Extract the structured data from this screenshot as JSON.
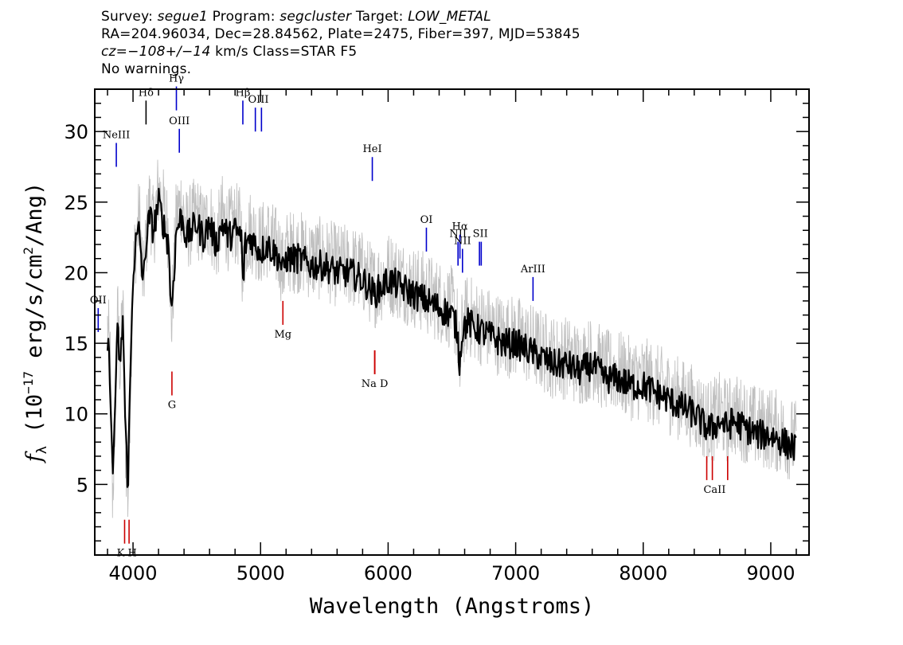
{
  "header": {
    "survey_label": "Survey:",
    "survey": "segue1",
    "program_label": "Program:",
    "program": "segcluster",
    "target_label": "Target:",
    "target": "LOW_METAL",
    "line2": "RA=204.96034, Dec=28.84562, Plate=2475, Fiber=397, MJD=53845",
    "cz_prefix": "cz=",
    "cz_value": "−108+/−14",
    "cz_suffix": " km/s Class=STAR F5",
    "line4": "No warnings."
  },
  "chart_data": {
    "type": "line",
    "xlabel": "Wavelength (Angstroms)",
    "ylabel_symbol": "f",
    "ylabel_sub": "λ",
    "ylabel_pre": " (10",
    "ylabel_exp": "−17",
    "ylabel_mid": " erg/s/cm",
    "ylabel_exp2": "2",
    "ylabel_post": "/Ang)",
    "xlim": [
      3700,
      9300
    ],
    "ylim": [
      0,
      33
    ],
    "xticks": [
      4000,
      5000,
      6000,
      7000,
      8000,
      9000
    ],
    "yticks": [
      5,
      10,
      15,
      20,
      25,
      30
    ],
    "series": [
      {
        "role": "flux",
        "color": "#c0c0c0",
        "x": [
          3800,
          3820,
          3840,
          3860,
          3880,
          3900,
          3920,
          3940,
          3960,
          3980,
          4000,
          4020,
          4050,
          4080,
          4100,
          4130,
          4160,
          4200,
          4250,
          4280,
          4300,
          4340,
          4380,
          4420,
          4460,
          4500,
          4550,
          4600,
          4650,
          4700,
          4750,
          4800,
          4850,
          4861,
          4880,
          4920,
          4960,
          5000,
          5050,
          5100,
          5150,
          5175,
          5200,
          5300,
          5400,
          5500,
          5600,
          5700,
          5800,
          5890,
          5950,
          6000,
          6100,
          6200,
          6300,
          6400,
          6500,
          6540,
          6563,
          6580,
          6620,
          6700,
          6800,
          6900,
          7000,
          7100,
          7200,
          7300,
          7400,
          7500,
          7600,
          7700,
          7800,
          7900,
          8000,
          8100,
          8200,
          8300,
          8400,
          8498,
          8542,
          8600,
          8662,
          8700,
          8800,
          8900,
          9000,
          9100,
          9200
        ],
        "y": [
          16,
          14,
          4,
          10,
          17,
          13,
          18,
          8,
          4,
          12,
          20,
          22,
          24,
          19,
          22,
          25,
          23,
          26,
          24,
          23,
          16,
          24,
          25,
          23,
          23.5,
          24,
          23,
          24,
          22,
          24,
          23,
          23.5,
          23,
          19,
          22.5,
          23,
          22.5,
          22,
          22.5,
          22,
          21.5,
          20,
          21.5,
          21.5,
          21,
          21,
          20.5,
          20.5,
          20,
          19,
          19.5,
          20,
          19.5,
          19,
          18.5,
          18,
          17.5,
          16.5,
          13,
          16,
          17,
          16.5,
          16,
          15.5,
          15.5,
          15,
          14.5,
          14,
          14,
          13.5,
          14,
          13,
          13,
          12.5,
          12.5,
          12,
          11.5,
          11,
          10.5,
          9.5,
          9.5,
          10,
          9.5,
          10,
          9.5,
          9,
          9,
          8.5,
          8
        ]
      },
      {
        "role": "model",
        "color": "#000000",
        "x": [
          3800,
          3820,
          3840,
          3860,
          3880,
          3900,
          3920,
          3940,
          3960,
          3980,
          4000,
          4020,
          4050,
          4080,
          4100,
          4130,
          4160,
          4200,
          4250,
          4280,
          4300,
          4340,
          4380,
          4420,
          4460,
          4500,
          4550,
          4600,
          4650,
          4700,
          4750,
          4800,
          4850,
          4861,
          4880,
          4920,
          4960,
          5000,
          5050,
          5100,
          5150,
          5175,
          5200,
          5300,
          5400,
          5500,
          5600,
          5700,
          5800,
          5890,
          5950,
          6000,
          6100,
          6200,
          6300,
          6400,
          6500,
          6540,
          6563,
          6580,
          6620,
          6700,
          6800,
          6900,
          7000,
          7100,
          7200,
          7300,
          7400,
          7500,
          7600,
          7700,
          7800,
          7900,
          8000,
          8100,
          8200,
          8300,
          8400,
          8498,
          8542,
          8600,
          8662,
          8700,
          8800,
          8900,
          9000,
          9100,
          9200
        ],
        "y": [
          15,
          13,
          5,
          11,
          16,
          13,
          17,
          9,
          5,
          13,
          20,
          22,
          23,
          19,
          22,
          24,
          23,
          25,
          23,
          22,
          17,
          23,
          24,
          22.5,
          23,
          23.5,
          22.5,
          23.5,
          22,
          23.5,
          22.5,
          23,
          22.5,
          19,
          22,
          22.5,
          22,
          21.5,
          22,
          21.5,
          21,
          20,
          21,
          21,
          20.5,
          20.5,
          20,
          20,
          19.5,
          18.5,
          19,
          19.5,
          19,
          18.5,
          18,
          17.5,
          17,
          16,
          13.5,
          16,
          16.5,
          16,
          15.5,
          15,
          15,
          14.5,
          14,
          13.5,
          13.5,
          13,
          13.5,
          12.5,
          12.5,
          12,
          12,
          11.5,
          11,
          10.5,
          10,
          9,
          9,
          9.5,
          9,
          9.5,
          9,
          8.5,
          8.5,
          8,
          7.5
        ]
      }
    ],
    "emission_lines": [
      {
        "label": "OII",
        "x": 3727,
        "y": 15.8,
        "color": "#0000cc"
      },
      {
        "label": "NeIII",
        "x": 3869,
        "y": 27.5,
        "color": "#0000cc"
      },
      {
        "label": "Hδ",
        "x": 4102,
        "y": 30.5,
        "color": "#000000"
      },
      {
        "label": "Hγ",
        "x": 4340,
        "y": 31.5,
        "color": "#0000cc"
      },
      {
        "label": "OIII",
        "x": 4363,
        "y": 28.5,
        "color": "#0000cc"
      },
      {
        "label": "Hβ",
        "x": 4861,
        "y": 30.5,
        "color": "#0000cc"
      },
      {
        "label": "OIII",
        "x": 4959,
        "y": 30.0,
        "color": "#0000cc"
      },
      {
        "label": "OIII",
        "x": 5007,
        "y": 30.0,
        "color": "#0000cc"
      },
      {
        "label": "HeI",
        "x": 5876,
        "y": 26.5,
        "color": "#0000cc"
      },
      {
        "label": "OI",
        "x": 6300,
        "y": 21.5,
        "color": "#0000cc"
      },
      {
        "label": "NII",
        "x": 6548,
        "y": 20.5,
        "color": "#0000cc"
      },
      {
        "label": "Hα",
        "x": 6563,
        "y": 21.0,
        "color": "#0000cc"
      },
      {
        "label": "NII",
        "x": 6583,
        "y": 20.0,
        "color": "#0000cc"
      },
      {
        "label": "SII",
        "x": 6716,
        "y": 20.5,
        "color": "#0000cc"
      },
      {
        "label": "SII",
        "x": 6730,
        "y": 20.5,
        "color": "#0000cc"
      },
      {
        "label": "ArIII",
        "x": 7136,
        "y": 18.0,
        "color": "#0000cc"
      }
    ],
    "absorption_lines": [
      {
        "label": "K",
        "x": 3934,
        "y": 2.5,
        "color": "#cc0000"
      },
      {
        "label": "H",
        "x": 3969,
        "y": 2.5,
        "color": "#cc0000"
      },
      {
        "label": "G",
        "x": 4305,
        "y": 13.0,
        "color": "#cc0000"
      },
      {
        "label": "Mg",
        "x": 5175,
        "y": 18.0,
        "color": "#cc0000"
      },
      {
        "label": "Na",
        "x": 5894,
        "y": 14.5,
        "color": "#cc0000"
      },
      {
        "label": "D",
        "x": 5896,
        "y": 14.5,
        "color": "#cc0000"
      },
      {
        "label": "CaII",
        "x": 8498,
        "y": 7.0,
        "color": "#cc0000"
      },
      {
        "label": "CaII",
        "x": 8542,
        "y": 7.0,
        "color": "#cc0000"
      },
      {
        "label": "CaII",
        "x": 8662,
        "y": 7.0,
        "color": "#cc0000"
      }
    ],
    "label_text": {
      "OII": "OII",
      "NeIII": "NeIII",
      "Hd": "Hδ",
      "Hg": "Hγ",
      "OIII": "OIII",
      "Hb": "Hβ",
      "OIIIb": "OIII",
      "HeI": "HeI",
      "OI": "OI",
      "NII": "NII",
      "Ha": "Hα",
      "NIIb": "NII",
      "SII": "SII",
      "ArIII": "ArIII",
      "KH": "K H",
      "G": "G",
      "Mg": "Mg",
      "NaD": "Na  D",
      "CaII": "CaII"
    }
  }
}
